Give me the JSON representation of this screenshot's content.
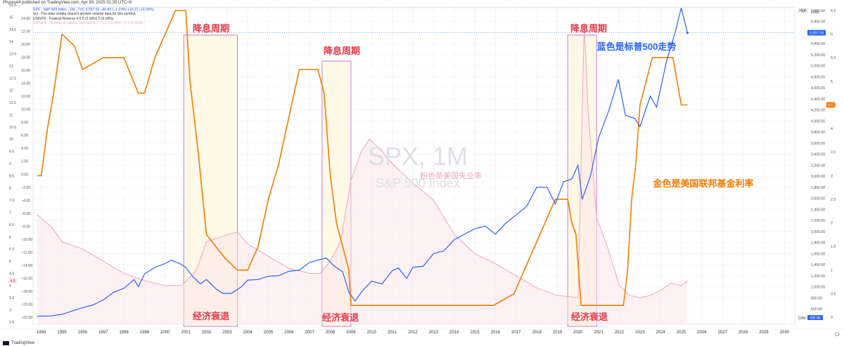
{
  "header": {
    "published": "Phyres44 published on TradingView.com, Apr 30, 2025 01:35 UTC+8"
  },
  "legend": {
    "spx": "SPX · S&P 500 Index · 1M · TVC  5,597.53  −66.89 (−1.19%)  +16.21 (+0.29%)",
    "vol": "Vol · The data vendor doesn't provide volume data for this symbol.",
    "rate": "USINTR · Federal Reserve  4.5  0 (0.00%)  0 (0.00%)",
    "unrate": "UNRATE · Bureau of Labour Statistics  4.2  −0.1 (−2.44%)  −0.1 (0.00%)"
  },
  "watermark": {
    "title": "SPX, 1M",
    "subtitle": "S&P 500 Index"
  },
  "annotations": {
    "cut_cycle": "降息周期",
    "recession": "经济衰退",
    "blue_is_spx": "蓝色是标普500走势",
    "pink_is_unrate": "粉色是美国失业率",
    "gold_is_fedrate": "金色是美国联邦基金利率"
  },
  "right_axis": {
    "currency": "USD",
    "high": "High",
    "low": "Low",
    "low_value": "435.86",
    "last_price": "5,597.53",
    "last_rate": "4.5"
  },
  "left_axis": {
    "last_unrate": "4.2"
  },
  "footer": {
    "brand": "TradingView"
  },
  "colors": {
    "spx": "#2962ff",
    "rate": "#f57c00",
    "unrate": "#f3a6b8",
    "box": "#c77dd6",
    "boxFill": "#fdf6df",
    "label": "#e5394a",
    "blueLabel": "#2962ff"
  },
  "chart_data": {
    "type": "line",
    "x_axis": {
      "ticks": [
        "1994",
        "1995",
        "1996",
        "1997",
        "1998",
        "1999",
        "2000",
        "2001",
        "2002",
        "2003",
        "2004",
        "2005",
        "2006",
        "2007",
        "2008",
        "2009",
        "2010",
        "2011",
        "2012",
        "2013",
        "2014",
        "2015",
        "2016",
        "2017",
        "2018",
        "2019",
        "2020",
        "2021",
        "2022",
        "2023",
        "2024",
        "2025",
        "2026",
        "2027",
        "2028",
        "2029",
        "2030"
      ],
      "range": [
        1993.6,
        2030.5
      ]
    },
    "axes": {
      "price": {
        "ticks": [
          800,
          1000,
          1200,
          1400,
          1600,
          1800,
          2000,
          2200,
          2400,
          2600,
          2800,
          3000,
          3200,
          3400,
          3600,
          3800,
          4000,
          4200,
          4400,
          4600,
          4800,
          5000,
          5200,
          5400,
          5600,
          5800,
          6000
        ],
        "labels": [
          "800.00",
          "1,000.00",
          "1,200.00",
          "1,400.00",
          "1,600.00",
          "1,800.00",
          "2,000.00",
          "2,200.00",
          "2,400.00",
          "2,600.00",
          "2,800.00",
          "3,000.00",
          "3,200.00",
          "3,400.00",
          "3,600.00",
          "3,800.00",
          "4,000.00",
          "4,200.00",
          "4,400.00",
          "4,600.00",
          "4,800.00",
          "5,000.00",
          "5,200.00",
          "5,400.00",
          "5,600.00",
          "5,800.00",
          "6,000.00"
        ],
        "extra": [
          {
            "v": 600,
            "label": "600.00"
          }
        ]
      },
      "rate_right": {
        "ticks": [
          0,
          0.5,
          1,
          1.5,
          2,
          2.5,
          3,
          3.5,
          4,
          4.5,
          5,
          5.5,
          6,
          6.5
        ]
      },
      "unrate_left": {
        "ticks": [
          2.5,
          3,
          3.5,
          4,
          4.5,
          5,
          5.5,
          6,
          6.5,
          7,
          7.5,
          8,
          8.5,
          9,
          9.5,
          10,
          10.5,
          11,
          11.5,
          12,
          12.5,
          13,
          13.5,
          14,
          14.5,
          15,
          15.5
        ]
      },
      "pct_left": {
        "ticks": [
          -22,
          -20,
          -18,
          -16,
          -14,
          -12,
          -10,
          -8,
          -6,
          -4,
          -2,
          0,
          2,
          4,
          6,
          8,
          10,
          12,
          14,
          16,
          18,
          20,
          22,
          24
        ],
        "labels": [
          "−22.00",
          "−20.00",
          "−18.00",
          "−16.00",
          "−14.00",
          "−12.00",
          "−10.00",
          "−8.00",
          "−6.00",
          "−4.00",
          "−2.00",
          "0.00",
          "2.00",
          "4.00",
          "6.00",
          "8.00",
          "10.00",
          "12.00",
          "14.00",
          "16.00",
          "18.00",
          "20.00",
          "22.00",
          "24.00"
        ]
      }
    },
    "boxes": [
      {
        "kind": "cut",
        "x0": 2000.9,
        "x1": 2003.5
      },
      {
        "kind": "cut",
        "x0": 2007.6,
        "x1": 2009.0
      },
      {
        "kind": "cut",
        "x0": 2019.5,
        "x1": 2020.9
      }
    ],
    "series": [
      {
        "name": "SPX",
        "axis": "price",
        "x": [
          1993.8,
          1994.5,
          1995,
          1995.5,
          1996,
          1996.5,
          1997,
          1997.5,
          1998,
          1998.5,
          1998.7,
          1999,
          1999.5,
          2000,
          2000.3,
          2000.7,
          2001,
          2001.3,
          2001.7,
          2002,
          2002.5,
          2002.8,
          2003.2,
          2003.7,
          2004,
          2004.5,
          2005,
          2005.5,
          2006,
          2006.5,
          2007,
          2007.4,
          2007.8,
          2008.2,
          2008.6,
          2008.9,
          2009.2,
          2009.5,
          2010,
          2010.5,
          2011,
          2011.3,
          2011.7,
          2012,
          2012.5,
          2013,
          2013.5,
          2014,
          2014.5,
          2015,
          2015.5,
          2016,
          2016.5,
          2017,
          2017.5,
          2018,
          2018.5,
          2018.9,
          2019.3,
          2019.7,
          2020,
          2020.2,
          2020.6,
          2021,
          2021.5,
          2021.95,
          2022.3,
          2022.75,
          2023,
          2023.5,
          2023.8,
          2024.3,
          2024.7,
          2025.0,
          2025.1,
          2025.3
        ],
        "y": [
          466,
          470,
          500,
          560,
          620,
          670,
          760,
          900,
          970,
          1130,
          1000,
          1230,
          1350,
          1420,
          1480,
          1420,
          1350,
          1200,
          1050,
          1130,
          950,
          880,
          880,
          1000,
          1120,
          1130,
          1190,
          1200,
          1280,
          1300,
          1440,
          1480,
          1520,
          1370,
          1270,
          900,
          740,
          900,
          1100,
          1050,
          1290,
          1340,
          1150,
          1350,
          1370,
          1600,
          1650,
          1850,
          1950,
          2050,
          2100,
          1950,
          2150,
          2300,
          2450,
          2800,
          2800,
          2500,
          2900,
          2950,
          3200,
          2580,
          3000,
          3700,
          4200,
          4750,
          4100,
          4050,
          3900,
          4450,
          4250,
          5100,
          5600,
          6050,
          5900,
          5597
        ]
      },
      {
        "name": "USINTR",
        "axis": "rate_right",
        "x": [
          1993.8,
          1994,
          1994.3,
          1994.6,
          1995,
          1995.6,
          1996,
          1997,
          1997.3,
          1998,
          1998.7,
          1999,
          1999.5,
          2000,
          2000.5,
          2001,
          2001.2,
          2001.6,
          2002,
          2002.9,
          2003.5,
          2004,
          2004.5,
          2005,
          2005.5,
          2006,
          2006.5,
          2007.4,
          2007.7,
          2008,
          2008.3,
          2008.9,
          2009,
          2015.9,
          2016.9,
          2017.4,
          2017.9,
          2018.4,
          2018.9,
          2019.5,
          2019.7,
          2019.9,
          2020.15,
          2022.2,
          2022.4,
          2022.6,
          2022.8,
          2023.0,
          2023.3,
          2023.6,
          2024.6,
          2024.8,
          2025.0,
          2025.3
        ],
        "y": [
          3.0,
          3.0,
          4.0,
          4.75,
          6.0,
          5.75,
          5.25,
          5.5,
          5.5,
          5.5,
          4.75,
          4.75,
          5.5,
          6.0,
          6.5,
          6.5,
          5.0,
          3.5,
          1.75,
          1.25,
          1.0,
          1.0,
          1.5,
          2.5,
          3.25,
          4.25,
          5.25,
          5.25,
          4.75,
          3.0,
          2.0,
          1.0,
          0.25,
          0.25,
          0.5,
          1.0,
          1.5,
          2.0,
          2.5,
          2.5,
          2.0,
          1.75,
          0.25,
          0.25,
          1.0,
          2.5,
          3.25,
          4.5,
          5.0,
          5.5,
          5.5,
          5.0,
          4.5,
          4.5
        ]
      },
      {
        "name": "UNRATE",
        "axis": "unrate_left",
        "x": [
          1993.8,
          1994.5,
          1995,
          1996,
          1997,
          1998,
          1999,
          2000,
          2000.8,
          2001.5,
          2002,
          2002.7,
          2003.5,
          2004,
          2005,
          2006,
          2007,
          2007.5,
          2008,
          2008.5,
          2009,
          2009.5,
          2009.9,
          2010.5,
          2011,
          2012,
          2013,
          2014,
          2015,
          2016,
          2017,
          2018,
          2019,
          2020.0,
          2020.3,
          2020.5,
          2020.9,
          2021.5,
          2022,
          2022.5,
          2023,
          2023.5,
          2024,
          2024.5,
          2025,
          2025.3
        ],
        "y": [
          6.9,
          6.4,
          5.8,
          5.5,
          5.0,
          4.5,
          4.2,
          4.0,
          4.0,
          4.6,
          5.8,
          6.0,
          6.2,
          5.7,
          5.2,
          4.7,
          4.5,
          4.5,
          5.0,
          5.8,
          8.3,
          9.5,
          10.0,
          9.5,
          9.0,
          8.2,
          7.5,
          6.1,
          5.3,
          4.9,
          4.4,
          3.9,
          3.6,
          3.5,
          14.7,
          11.0,
          6.8,
          5.4,
          4.0,
          3.6,
          3.5,
          3.6,
          3.8,
          4.1,
          4.0,
          4.2
        ]
      }
    ]
  }
}
